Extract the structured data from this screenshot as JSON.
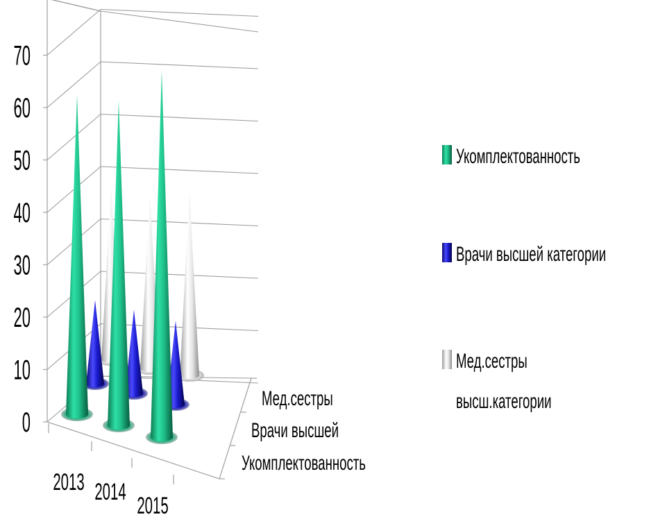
{
  "chart_data": {
    "type": "bar",
    "bar_shape": "cone-3d",
    "categories": [
      "2013",
      "2014",
      "2015"
    ],
    "series": [
      {
        "name": "Укомплектованность",
        "axis_label": "Укомплектованность",
        "legend_label": "Укомплектованность",
        "values": [
          61,
          62,
          70
        ],
        "color": "#1fbf8a"
      },
      {
        "name": "Врачи высшей категории",
        "axis_label": "Врачи высшей",
        "legend_label": "Врачи высшей категории",
        "values": [
          16,
          16,
          16
        ],
        "color": "#1a1acc"
      },
      {
        "name": "Мед.сестры высш.категории",
        "axis_label": "Мед.сестры",
        "legend_label": "Мед.сестры высш.категории",
        "legend_lines": [
          "Мед.сестры",
          "высш.категории"
        ],
        "values": [
          33,
          33,
          35
        ],
        "color": "#e2e2e2"
      }
    ],
    "y_ticks": [
      "0",
      "10",
      "20",
      "30",
      "40",
      "50",
      "60",
      "70"
    ],
    "ylim": [
      0,
      80
    ],
    "grid": true,
    "legend_position": "right",
    "title": "",
    "xlabel": "",
    "ylabel": ""
  }
}
